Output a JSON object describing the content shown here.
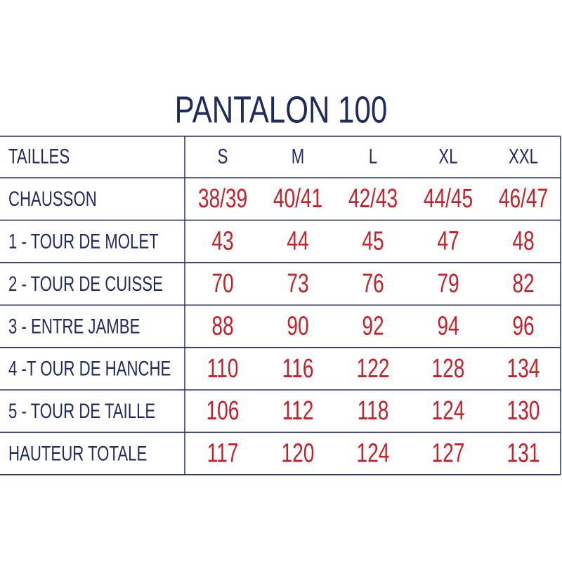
{
  "header": {
    "title": "PANTALON 100"
  },
  "table": {
    "columns": [
      "TAILLES",
      "S",
      "M",
      "L",
      "XL",
      "XXL"
    ],
    "rows": [
      [
        "CHAUSSON",
        "38/39",
        "40/41",
        "42/43",
        "44/45",
        "46/47"
      ],
      [
        "1 - TOUR DE MOLET",
        43,
        44,
        45,
        47,
        48
      ],
      [
        "2 - TOUR DE CUISSE",
        70,
        73,
        76,
        79,
        82
      ],
      [
        "3 - ENTRE JAMBE",
        88,
        90,
        92,
        94,
        96
      ],
      [
        "4 -T OUR DE HANCHE",
        110,
        116,
        122,
        128,
        134
      ],
      [
        "5 - TOUR DE TAILLE",
        106,
        112,
        118,
        124,
        130
      ],
      [
        "HAUTEUR TOTALE",
        117,
        120,
        124,
        127,
        131
      ]
    ]
  }
}
